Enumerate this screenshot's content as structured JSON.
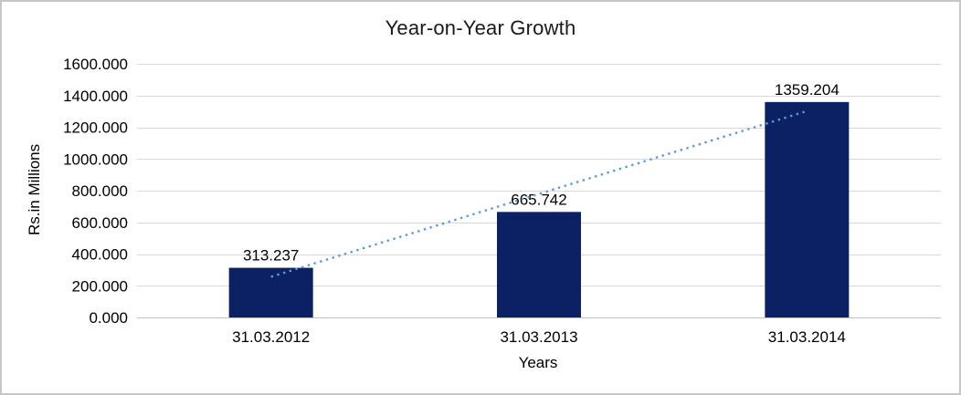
{
  "chart_data": {
    "type": "bar",
    "title": "Year-on-Year Growth",
    "xlabel": "Years",
    "ylabel": "Rs.in Millions",
    "categories": [
      "31.03.2012",
      "31.03.2013",
      "31.03.2014"
    ],
    "values": [
      313.237,
      665.742,
      1359.204
    ],
    "data_labels": [
      "313.237",
      "665.742",
      "1359.204"
    ],
    "ylim": [
      0,
      1600
    ],
    "ytick_step": 200,
    "ytick_values": [
      0,
      200,
      400,
      600,
      800,
      1000,
      1200,
      1400,
      1600
    ],
    "ytick_labels": [
      "0.000",
      "200.000",
      "400.000",
      "600.000",
      "800.000",
      "1000.000",
      "1200.000",
      "1400.000",
      "1600.000"
    ],
    "grid": "horizontal",
    "legend": "none",
    "bar_color": "#0b2163",
    "gridline_color": "#d9d9d9",
    "axis_color": "#bfbfbf",
    "trendline": {
      "style": "dotted",
      "color": "#5b9bd5",
      "start_value": 256.4,
      "end_value": 1302.4
    }
  }
}
